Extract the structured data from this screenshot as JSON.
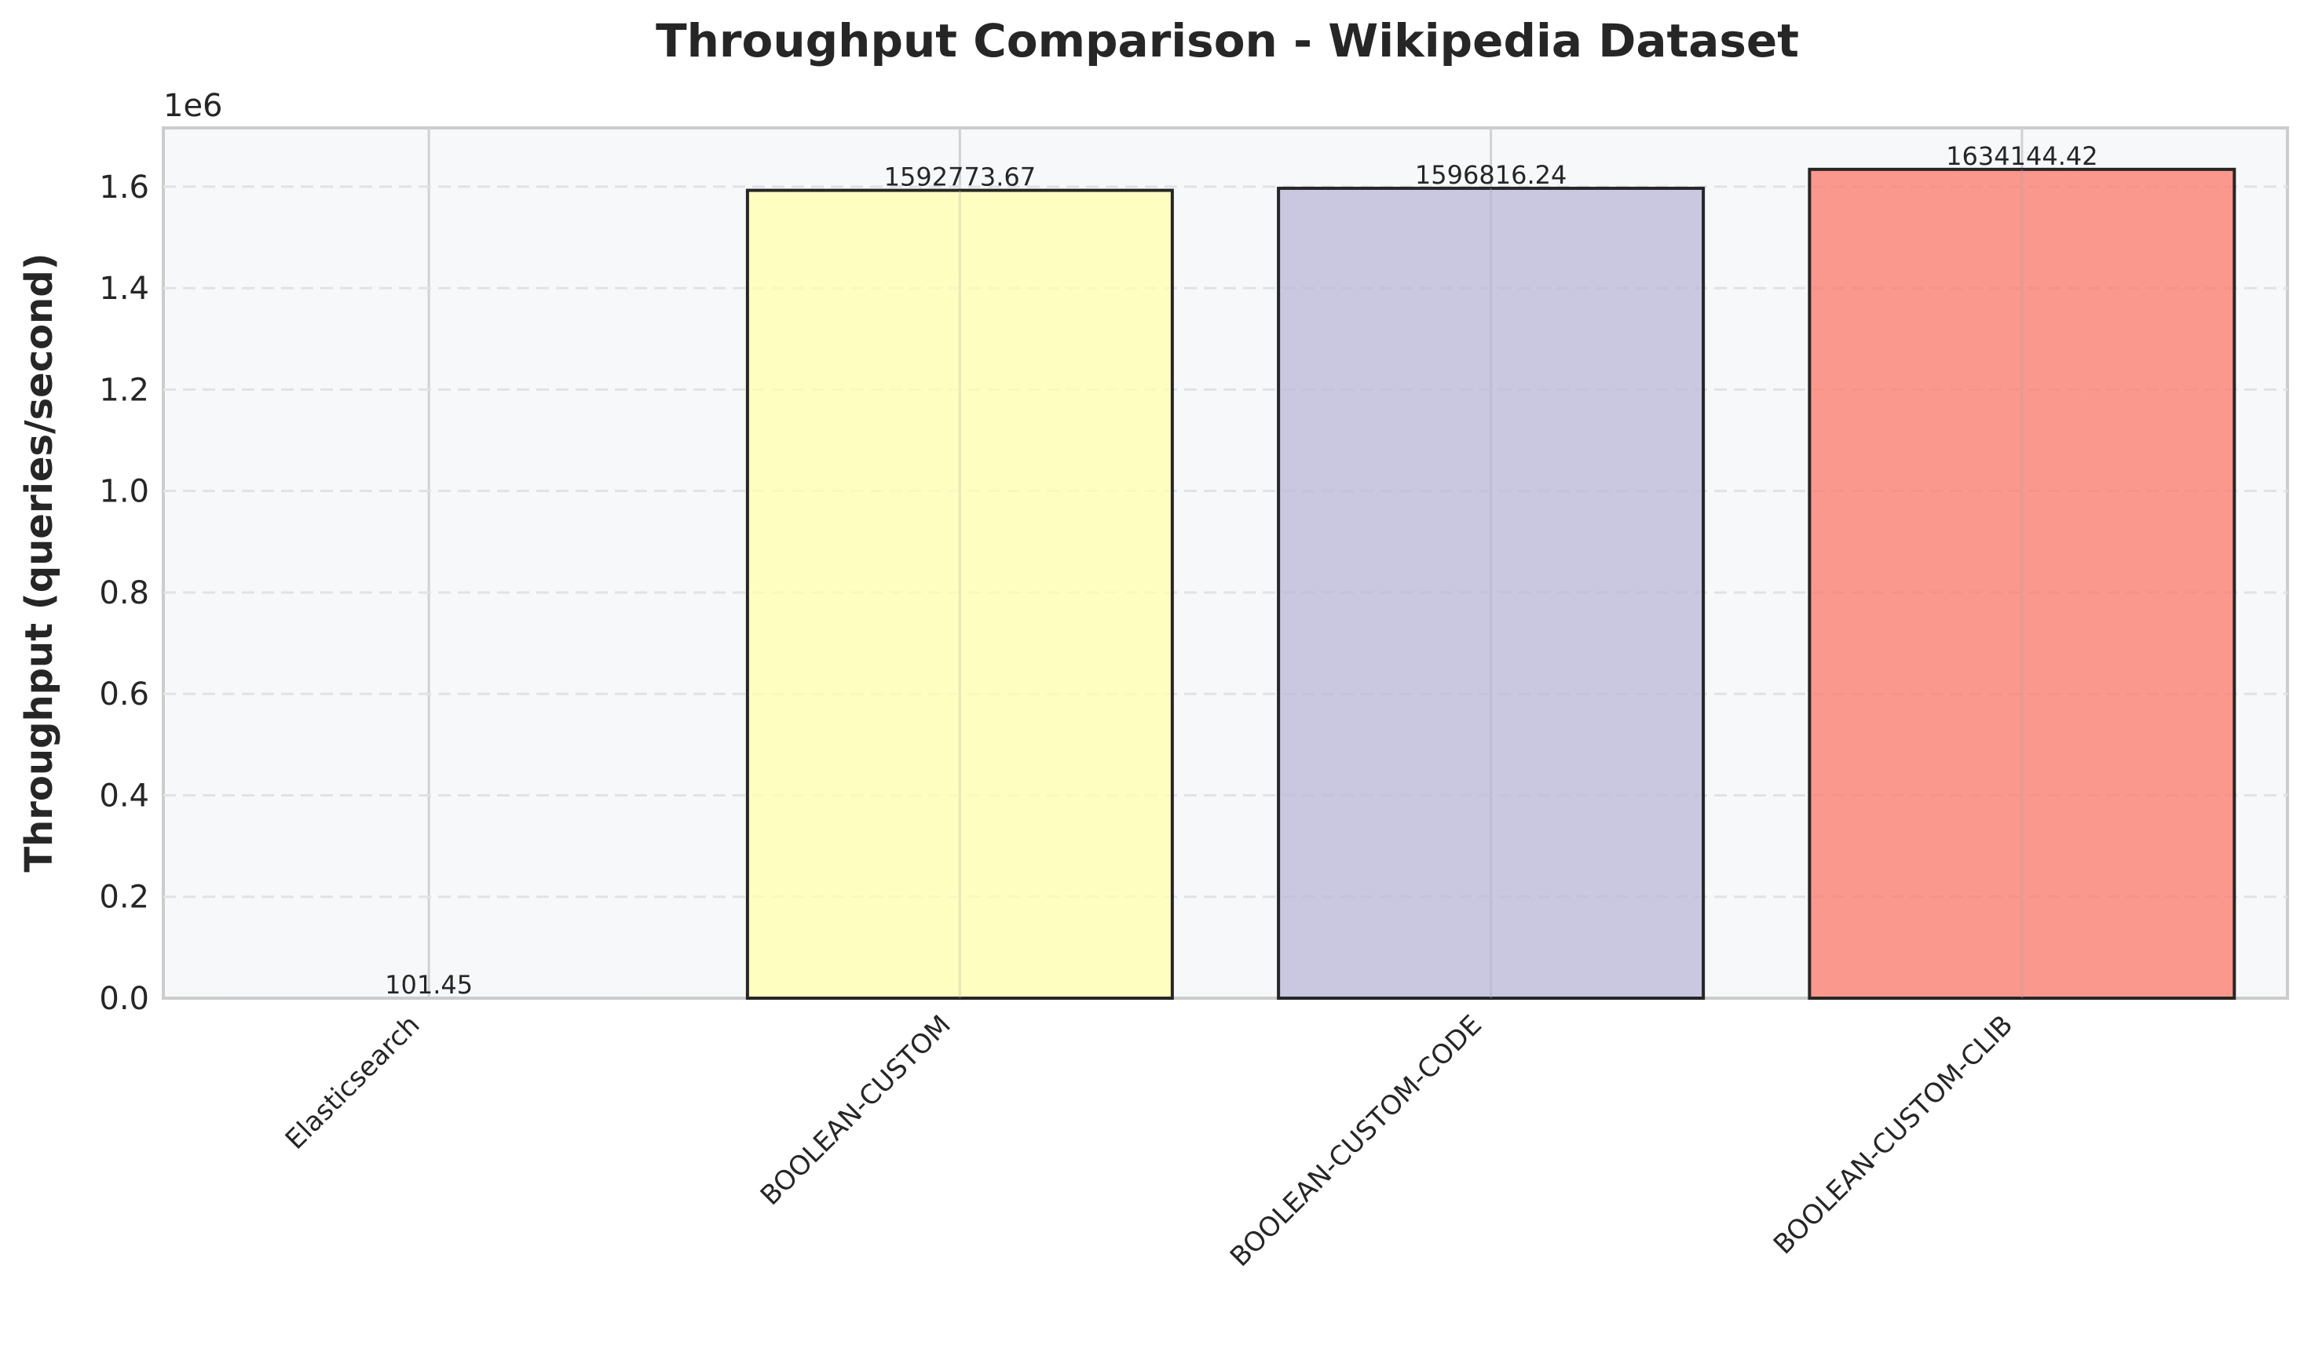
{
  "chart_data": {
    "type": "bar",
    "title": "Throughput Comparison - Wikipedia Dataset",
    "xlabel": "",
    "ylabel": "Throughput (queries/second)",
    "offset_label": "1e6",
    "categories": [
      "Elasticsearch",
      "BOOLEAN-CUSTOM",
      "BOOLEAN-CUSTOM-CODE",
      "BOOLEAN-CUSTOM-CLIB"
    ],
    "values": [
      101.45,
      1592773.67,
      1596816.24,
      1634144.42
    ],
    "data_labels": [
      "101.45",
      "1592773.67",
      "1596816.24",
      "1634144.42"
    ],
    "colors": [
      "#8dd3c7",
      "#ffffb3",
      "#bebada",
      "#fb8072"
    ],
    "ylim": [
      0,
      1715851.64
    ],
    "yticks": [
      0,
      200000,
      400000,
      600000,
      800000,
      1000000,
      1200000,
      1400000,
      1600000
    ],
    "ytick_labels": [
      "0.0",
      "0.2",
      "0.4",
      "0.6",
      "0.8",
      "1.0",
      "1.2",
      "1.4",
      "1.6"
    ],
    "grid": true,
    "legend": "none",
    "plot_background": "#f7f8fa"
  }
}
